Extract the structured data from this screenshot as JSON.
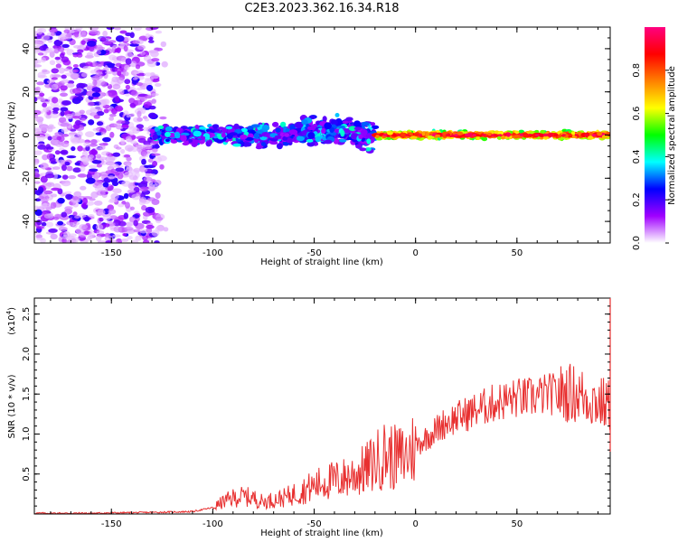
{
  "title": "C2E3.2023.362.16.34.R18",
  "chart_data": [
    {
      "type": "heatmap",
      "xlabel": "Height of straight line (km)",
      "ylabel": "Frequency (Hz)",
      "xlim": [
        -188,
        96
      ],
      "ylim": [
        -50,
        50
      ],
      "xticks": [
        -150,
        -100,
        -50,
        0,
        50
      ],
      "yticks": [
        -40,
        -20,
        0,
        20,
        40
      ],
      "colorbar": {
        "label": "Normalized spectral amplitude",
        "range": [
          0,
          1
        ],
        "ticks": [
          "0.0",
          "0.2",
          "0.4",
          "0.6",
          "0.8"
        ],
        "colors": [
          "#ffffff",
          "#a000ff",
          "#0000ff",
          "#00ffff",
          "#00ff00",
          "#ffff00",
          "#ff8000",
          "#ff0000",
          "#ff0080"
        ]
      },
      "regions": [
        {
          "name": "scattered noise",
          "x": [
            -188,
            -130
          ],
          "y": [
            -50,
            50
          ],
          "amplitude": 0.15
        },
        {
          "name": "band",
          "x": [
            -130,
            -20
          ],
          "y": [
            -5,
            5
          ],
          "amplitude": 0.3
        },
        {
          "name": "band",
          "x": [
            -20,
            96
          ],
          "y": [
            -2,
            2
          ],
          "amplitude": 0.85
        }
      ]
    },
    {
      "type": "line",
      "xlabel": "Height of straight line (km)",
      "ylabel": "SNR (10 * v/v)",
      "yscale_label": "(x10",
      "yscale_exp": "4",
      "yscale_close": ")",
      "xlim": [
        -188,
        96
      ],
      "ylim": [
        0,
        2.7
      ],
      "xticks": [
        -150,
        -100,
        -50,
        0,
        50
      ],
      "yticks": [
        "0.5",
        "1.0",
        "1.5",
        "2.0",
        "2.5"
      ],
      "color": "#e83030",
      "series": [
        {
          "x": [
            -188,
            -160,
            -130,
            -110,
            -100,
            -95,
            -90,
            -85,
            -80,
            -75,
            -70,
            -65,
            -60,
            -55,
            -50,
            -45,
            -40,
            -35,
            -30,
            -25,
            -20,
            -15,
            -10,
            -5,
            0,
            5,
            10,
            15,
            20,
            25,
            30,
            35,
            40,
            45,
            50,
            55,
            60,
            65,
            70,
            75,
            80,
            85,
            90,
            96
          ],
          "y": [
            0.01,
            0.01,
            0.02,
            0.03,
            0.08,
            0.15,
            0.2,
            0.22,
            0.2,
            0.15,
            0.18,
            0.2,
            0.25,
            0.3,
            0.35,
            0.4,
            0.42,
            0.45,
            0.5,
            0.55,
            0.65,
            0.75,
            0.7,
            0.72,
            0.85,
            0.95,
            1.05,
            1.15,
            1.2,
            1.25,
            1.3,
            1.35,
            1.4,
            1.42,
            1.45,
            1.45,
            1.47,
            1.5,
            1.5,
            1.52,
            1.5,
            1.45,
            1.4,
            1.35
          ]
        }
      ]
    }
  ]
}
